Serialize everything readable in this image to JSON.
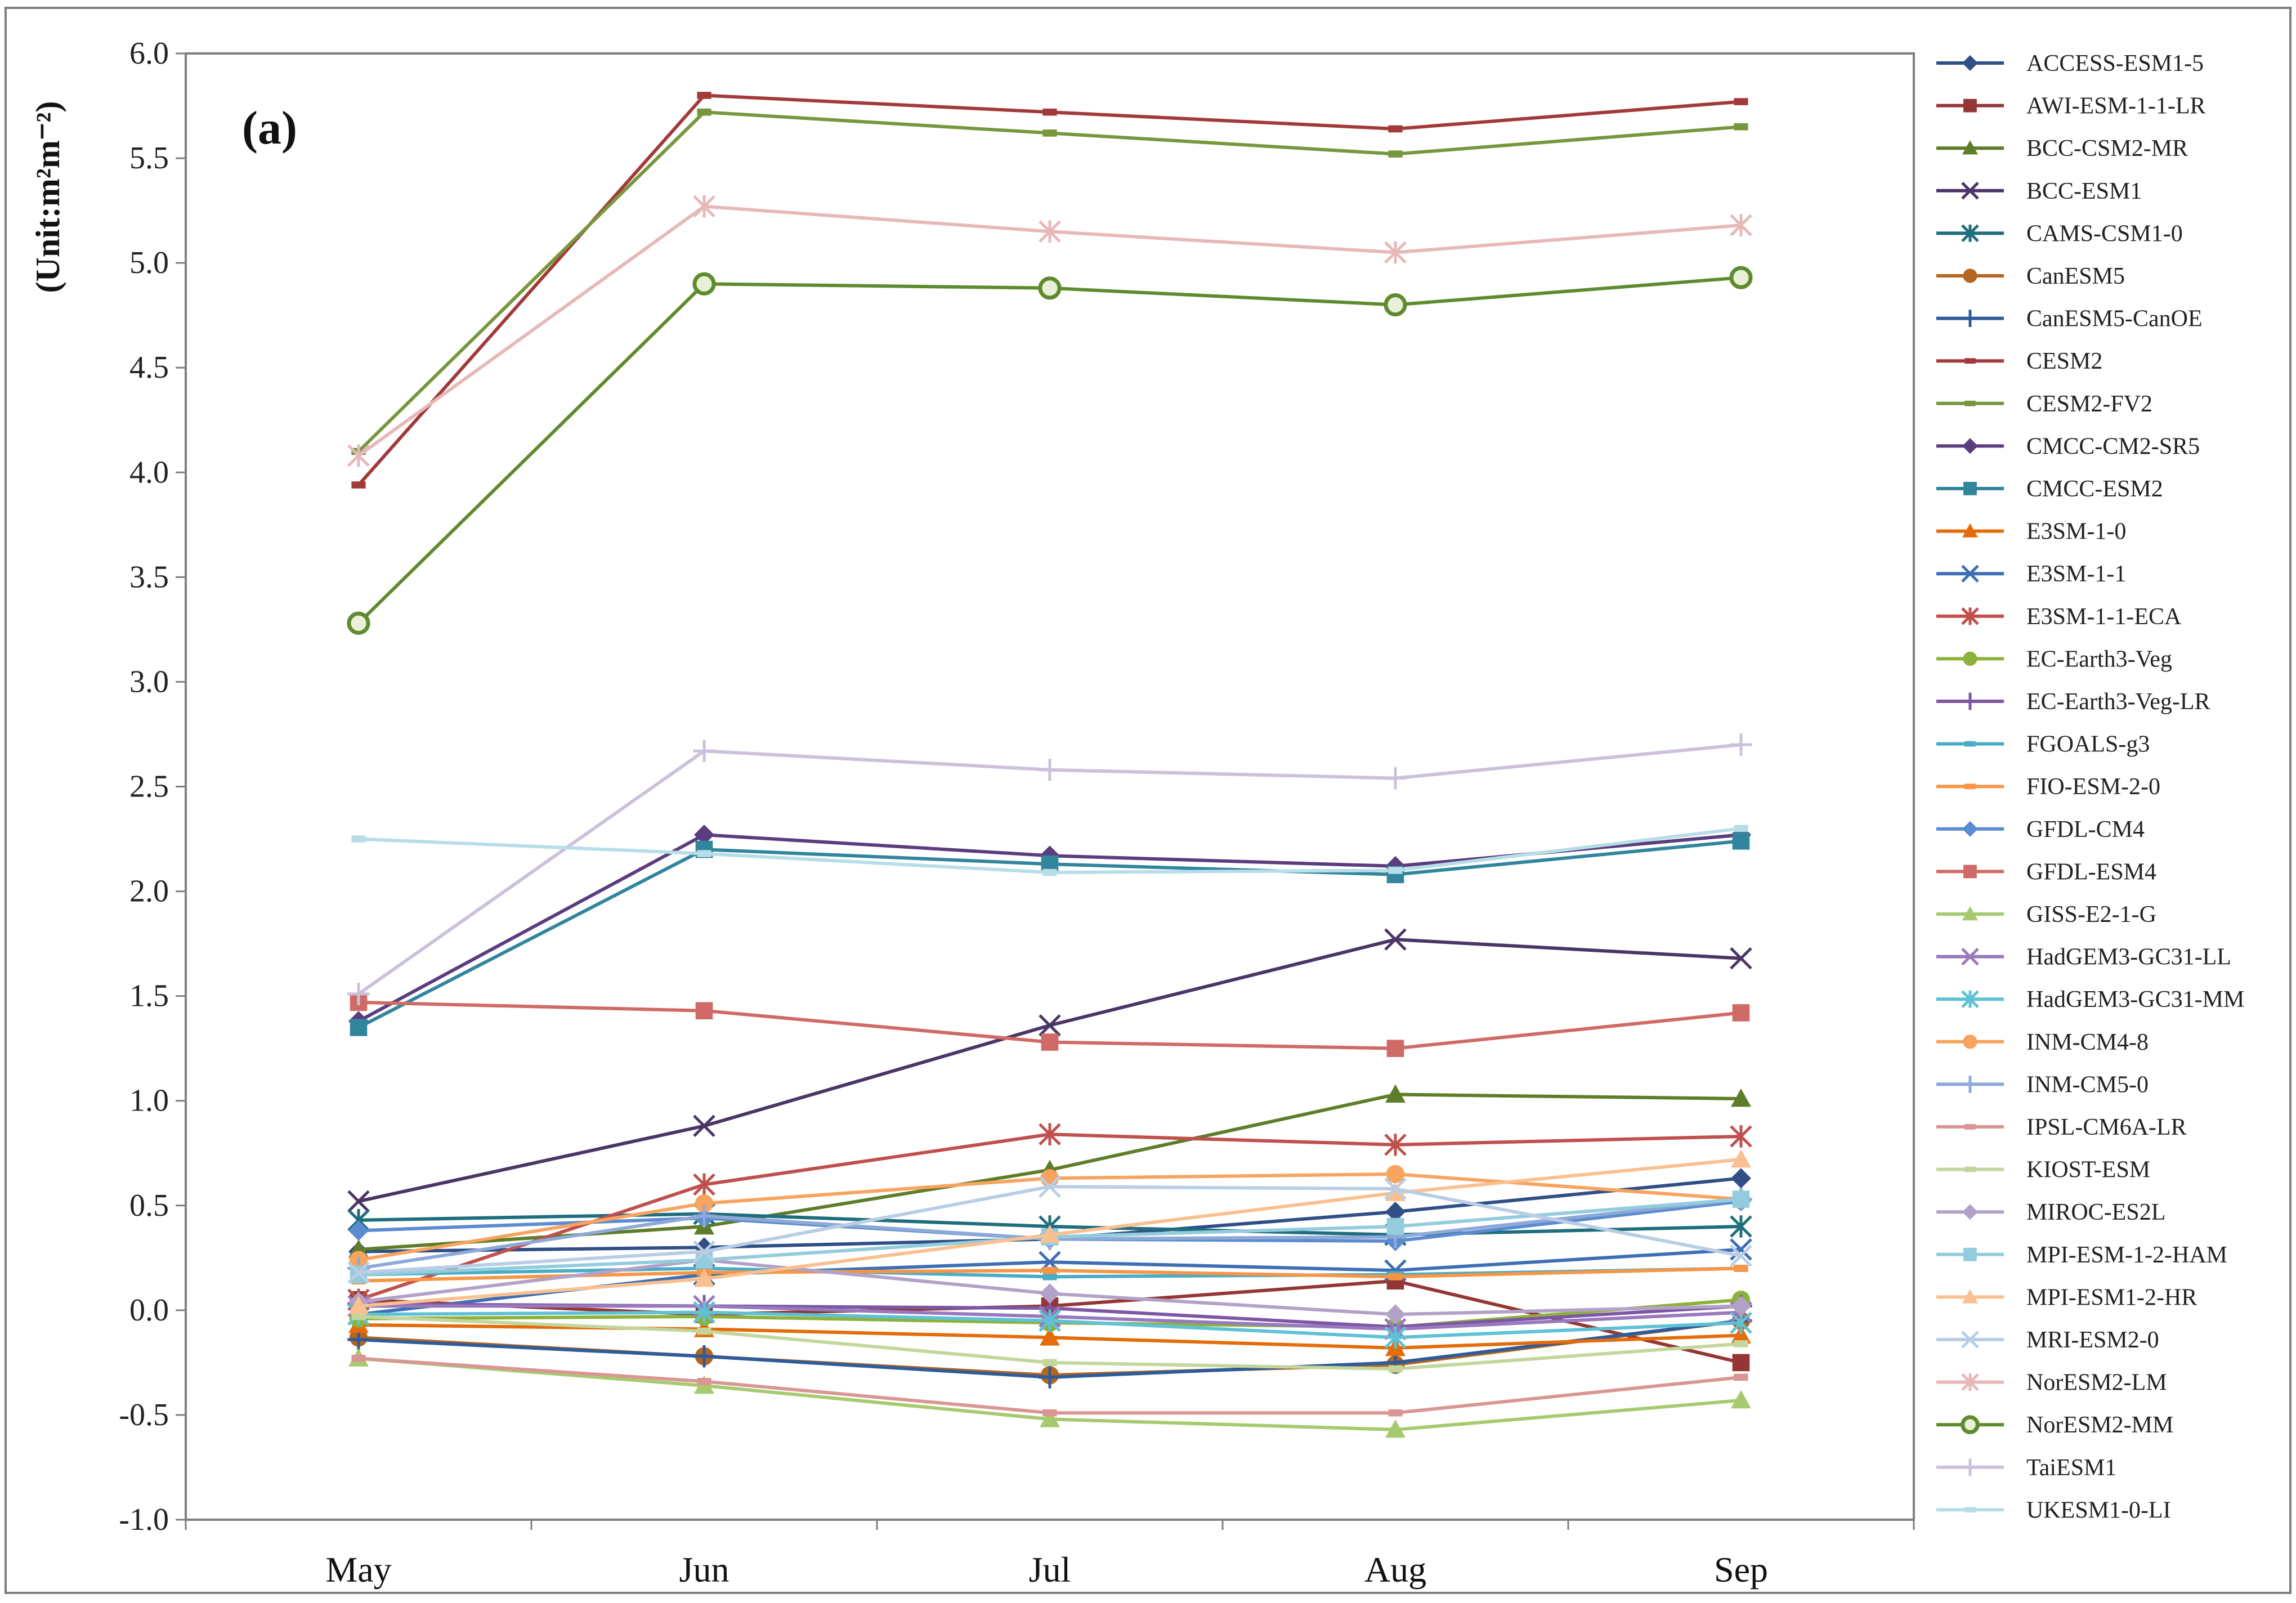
{
  "chart_data": {
    "type": "line",
    "panel_label": "(a)",
    "title": "",
    "xlabel": "",
    "ylabel": "(Unit:m²m⁻²)",
    "ylim": [
      -1.0,
      6.0
    ],
    "yticks": [
      "-1.0",
      "-0.5",
      "0.0",
      "0.5",
      "1.0",
      "1.5",
      "2.0",
      "2.5",
      "3.0",
      "3.5",
      "4.0",
      "4.5",
      "5.0",
      "5.5",
      "6.0"
    ],
    "categories": [
      "May",
      "Jun",
      "Jul",
      "Aug",
      "Sep"
    ],
    "grid": false,
    "legend_position": "right",
    "series": [
      {
        "name": "ACCESS-ESM1-5",
        "color": "#2F4F86",
        "marker": "diamond",
        "values": [
          0.28,
          0.3,
          0.34,
          0.47,
          0.63
        ]
      },
      {
        "name": "AWI-ESM-1-1-LR",
        "color": "#943634",
        "marker": "square",
        "values": [
          0.05,
          -0.02,
          0.02,
          0.14,
          -0.25
        ]
      },
      {
        "name": "BCC-CSM2-MR",
        "color": "#5E7D28",
        "marker": "triangle",
        "values": [
          0.29,
          0.4,
          0.67,
          1.03,
          1.01
        ]
      },
      {
        "name": "BCC-ESM1",
        "color": "#4A3566",
        "marker": "x",
        "values": [
          0.52,
          0.88,
          1.36,
          1.77,
          1.68
        ]
      },
      {
        "name": "CAMS-CSM1-0",
        "color": "#1F6E7E",
        "marker": "asterisk",
        "values": [
          0.43,
          0.46,
          0.4,
          0.36,
          0.4
        ]
      },
      {
        "name": "CanESM5",
        "color": "#B5651D",
        "marker": "circle",
        "values": [
          -0.13,
          -0.22,
          -0.31,
          -0.26,
          -0.05
        ]
      },
      {
        "name": "CanESM5-CanOE",
        "color": "#2E5C9A",
        "marker": "plus",
        "values": [
          -0.14,
          -0.22,
          -0.32,
          -0.25,
          -0.05
        ]
      },
      {
        "name": "CESM2",
        "color": "#A23A3A",
        "marker": "dash",
        "values": [
          3.94,
          5.8,
          5.72,
          5.64,
          5.77
        ]
      },
      {
        "name": "CESM2-FV2",
        "color": "#77973D",
        "marker": "dash",
        "values": [
          4.1,
          5.72,
          5.62,
          5.52,
          5.65
        ]
      },
      {
        "name": "CMCC-CM2-SR5",
        "color": "#5B3D7F",
        "marker": "diamond",
        "values": [
          1.38,
          2.27,
          2.17,
          2.12,
          2.27
        ]
      },
      {
        "name": "CMCC-ESM2",
        "color": "#31859C",
        "marker": "square",
        "values": [
          1.35,
          2.2,
          2.13,
          2.08,
          2.24
        ]
      },
      {
        "name": "E3SM-1-0",
        "color": "#E46C0A",
        "marker": "triangle",
        "values": [
          -0.07,
          -0.09,
          -0.13,
          -0.18,
          -0.12
        ]
      },
      {
        "name": "E3SM-1-1",
        "color": "#3E6FB4",
        "marker": "x",
        "values": [
          -0.02,
          0.17,
          0.23,
          0.19,
          0.29
        ]
      },
      {
        "name": "E3SM-1-1-ECA",
        "color": "#C0504D",
        "marker": "asterisk",
        "values": [
          0.05,
          0.6,
          0.84,
          0.79,
          0.83
        ]
      },
      {
        "name": "EC-Earth3-Veg",
        "color": "#8DB23C",
        "marker": "circle",
        "values": [
          -0.04,
          -0.03,
          -0.06,
          -0.08,
          0.05
        ]
      },
      {
        "name": "EC-Earth3-Veg-LR",
        "color": "#7D57A6",
        "marker": "plus",
        "values": [
          0.03,
          0.02,
          0.01,
          -0.08,
          0.02
        ]
      },
      {
        "name": "FGOALS-g3",
        "color": "#4BACC6",
        "marker": "dash",
        "values": [
          0.17,
          0.2,
          0.16,
          0.17,
          0.2
        ]
      },
      {
        "name": "FIO-ESM-2-0",
        "color": "#F79646",
        "marker": "dash",
        "values": [
          0.14,
          0.18,
          0.19,
          0.16,
          0.2
        ]
      },
      {
        "name": "GFDL-CM4",
        "color": "#5B8BD0",
        "marker": "diamond",
        "values": [
          0.38,
          0.44,
          0.34,
          0.33,
          0.52
        ]
      },
      {
        "name": "GFDL-ESM4",
        "color": "#D06A66",
        "marker": "square",
        "values": [
          1.47,
          1.43,
          1.28,
          1.25,
          1.42
        ]
      },
      {
        "name": "GISS-E2-1-G",
        "color": "#A6CB6E",
        "marker": "triangle",
        "values": [
          -0.23,
          -0.36,
          -0.52,
          -0.57,
          -0.43
        ]
      },
      {
        "name": "HadGEM3-GC31-LL",
        "color": "#9879BE",
        "marker": "x",
        "values": [
          0.02,
          0.02,
          -0.03,
          -0.09,
          -0.01
        ]
      },
      {
        "name": "HadGEM3-GC31-MM",
        "color": "#5FC1D6",
        "marker": "asterisk",
        "values": [
          -0.02,
          -0.01,
          -0.05,
          -0.13,
          -0.06
        ]
      },
      {
        "name": "INM-CM4-8",
        "color": "#F8A35E",
        "marker": "circle",
        "values": [
          0.24,
          0.51,
          0.63,
          0.65,
          0.53
        ]
      },
      {
        "name": "INM-CM5-0",
        "color": "#8EA9D8",
        "marker": "plus",
        "values": [
          0.2,
          0.45,
          0.34,
          0.35,
          0.53
        ]
      },
      {
        "name": "IPSL-CM6A-LR",
        "color": "#D99694",
        "marker": "dash",
        "values": [
          -0.23,
          -0.34,
          -0.49,
          -0.49,
          -0.32
        ]
      },
      {
        "name": "KIOST-ESM",
        "color": "#C3D69B",
        "marker": "dash",
        "values": [
          -0.03,
          -0.1,
          -0.25,
          -0.28,
          -0.16
        ]
      },
      {
        "name": "MIROC-ES2L",
        "color": "#B3A2C7",
        "marker": "diamond",
        "values": [
          0.04,
          0.24,
          0.08,
          -0.02,
          0.02
        ]
      },
      {
        "name": "MPI-ESM-1-2-HAM",
        "color": "#93CDDD",
        "marker": "square",
        "values": [
          0.17,
          0.24,
          0.35,
          0.4,
          0.53
        ]
      },
      {
        "name": "MPI-ESM1-2-HR",
        "color": "#FAC090",
        "marker": "triangle",
        "values": [
          0.02,
          0.15,
          0.36,
          0.56,
          0.72
        ]
      },
      {
        "name": "MRI-ESM2-0",
        "color": "#B9CDE5",
        "marker": "x",
        "values": [
          0.18,
          0.28,
          0.59,
          0.58,
          0.26
        ]
      },
      {
        "name": "NorESM2-LM",
        "color": "#E6B9B8",
        "marker": "asterisk",
        "values": [
          4.08,
          5.27,
          5.15,
          5.05,
          5.18
        ]
      },
      {
        "name": "NorESM2-MM",
        "color": "#5E8B2E",
        "marker": "circle-open",
        "values": [
          3.28,
          4.9,
          4.88,
          4.8,
          4.93
        ]
      },
      {
        "name": "TaiESM1",
        "color": "#CCC1DA",
        "marker": "plus",
        "values": [
          1.51,
          2.67,
          2.58,
          2.54,
          2.7
        ]
      },
      {
        "name": "UKESM1-0-LI",
        "color": "#B7DDE8",
        "marker": "dash",
        "values": [
          2.25,
          2.18,
          2.09,
          2.1,
          2.3
        ]
      }
    ]
  }
}
